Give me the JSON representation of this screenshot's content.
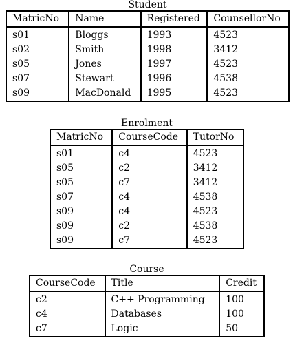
{
  "student": {
    "title": "Student",
    "headers": [
      "MatricNo",
      "Name",
      "Registered",
      "CounsellorNo"
    ],
    "rows": [
      [
        "s01",
        "Bloggs",
        "1993",
        "4523"
      ],
      [
        "s02",
        "Smith",
        "1998",
        "3412"
      ],
      [
        "s05",
        "Jones",
        "1997",
        "4523"
      ],
      [
        "s07",
        "Stewart",
        "1996",
        "4538"
      ],
      [
        "s09",
        "MacDonald",
        "1995",
        "4523"
      ]
    ]
  },
  "enrolment": {
    "title": "Enrolment",
    "headers": [
      "MatricNo",
      "CourseCode",
      "TutorNo"
    ],
    "rows": [
      [
        "s01",
        "c4",
        "4523"
      ],
      [
        "s05",
        "c2",
        "3412"
      ],
      [
        "s05",
        "c7",
        "3412"
      ],
      [
        "s07",
        "c4",
        "4538"
      ],
      [
        "s09",
        "c4",
        "4523"
      ],
      [
        "s09",
        "c2",
        "4538"
      ],
      [
        "s09",
        "c7",
        "4523"
      ]
    ]
  },
  "course": {
    "title": "Course",
    "headers": [
      "CourseCode",
      "Title",
      "Credit"
    ],
    "rows": [
      [
        "c2",
        "C++ Programming",
        "100"
      ],
      [
        "c4",
        "Databases",
        "100"
      ],
      [
        "c7",
        "Logic",
        "50"
      ]
    ]
  }
}
